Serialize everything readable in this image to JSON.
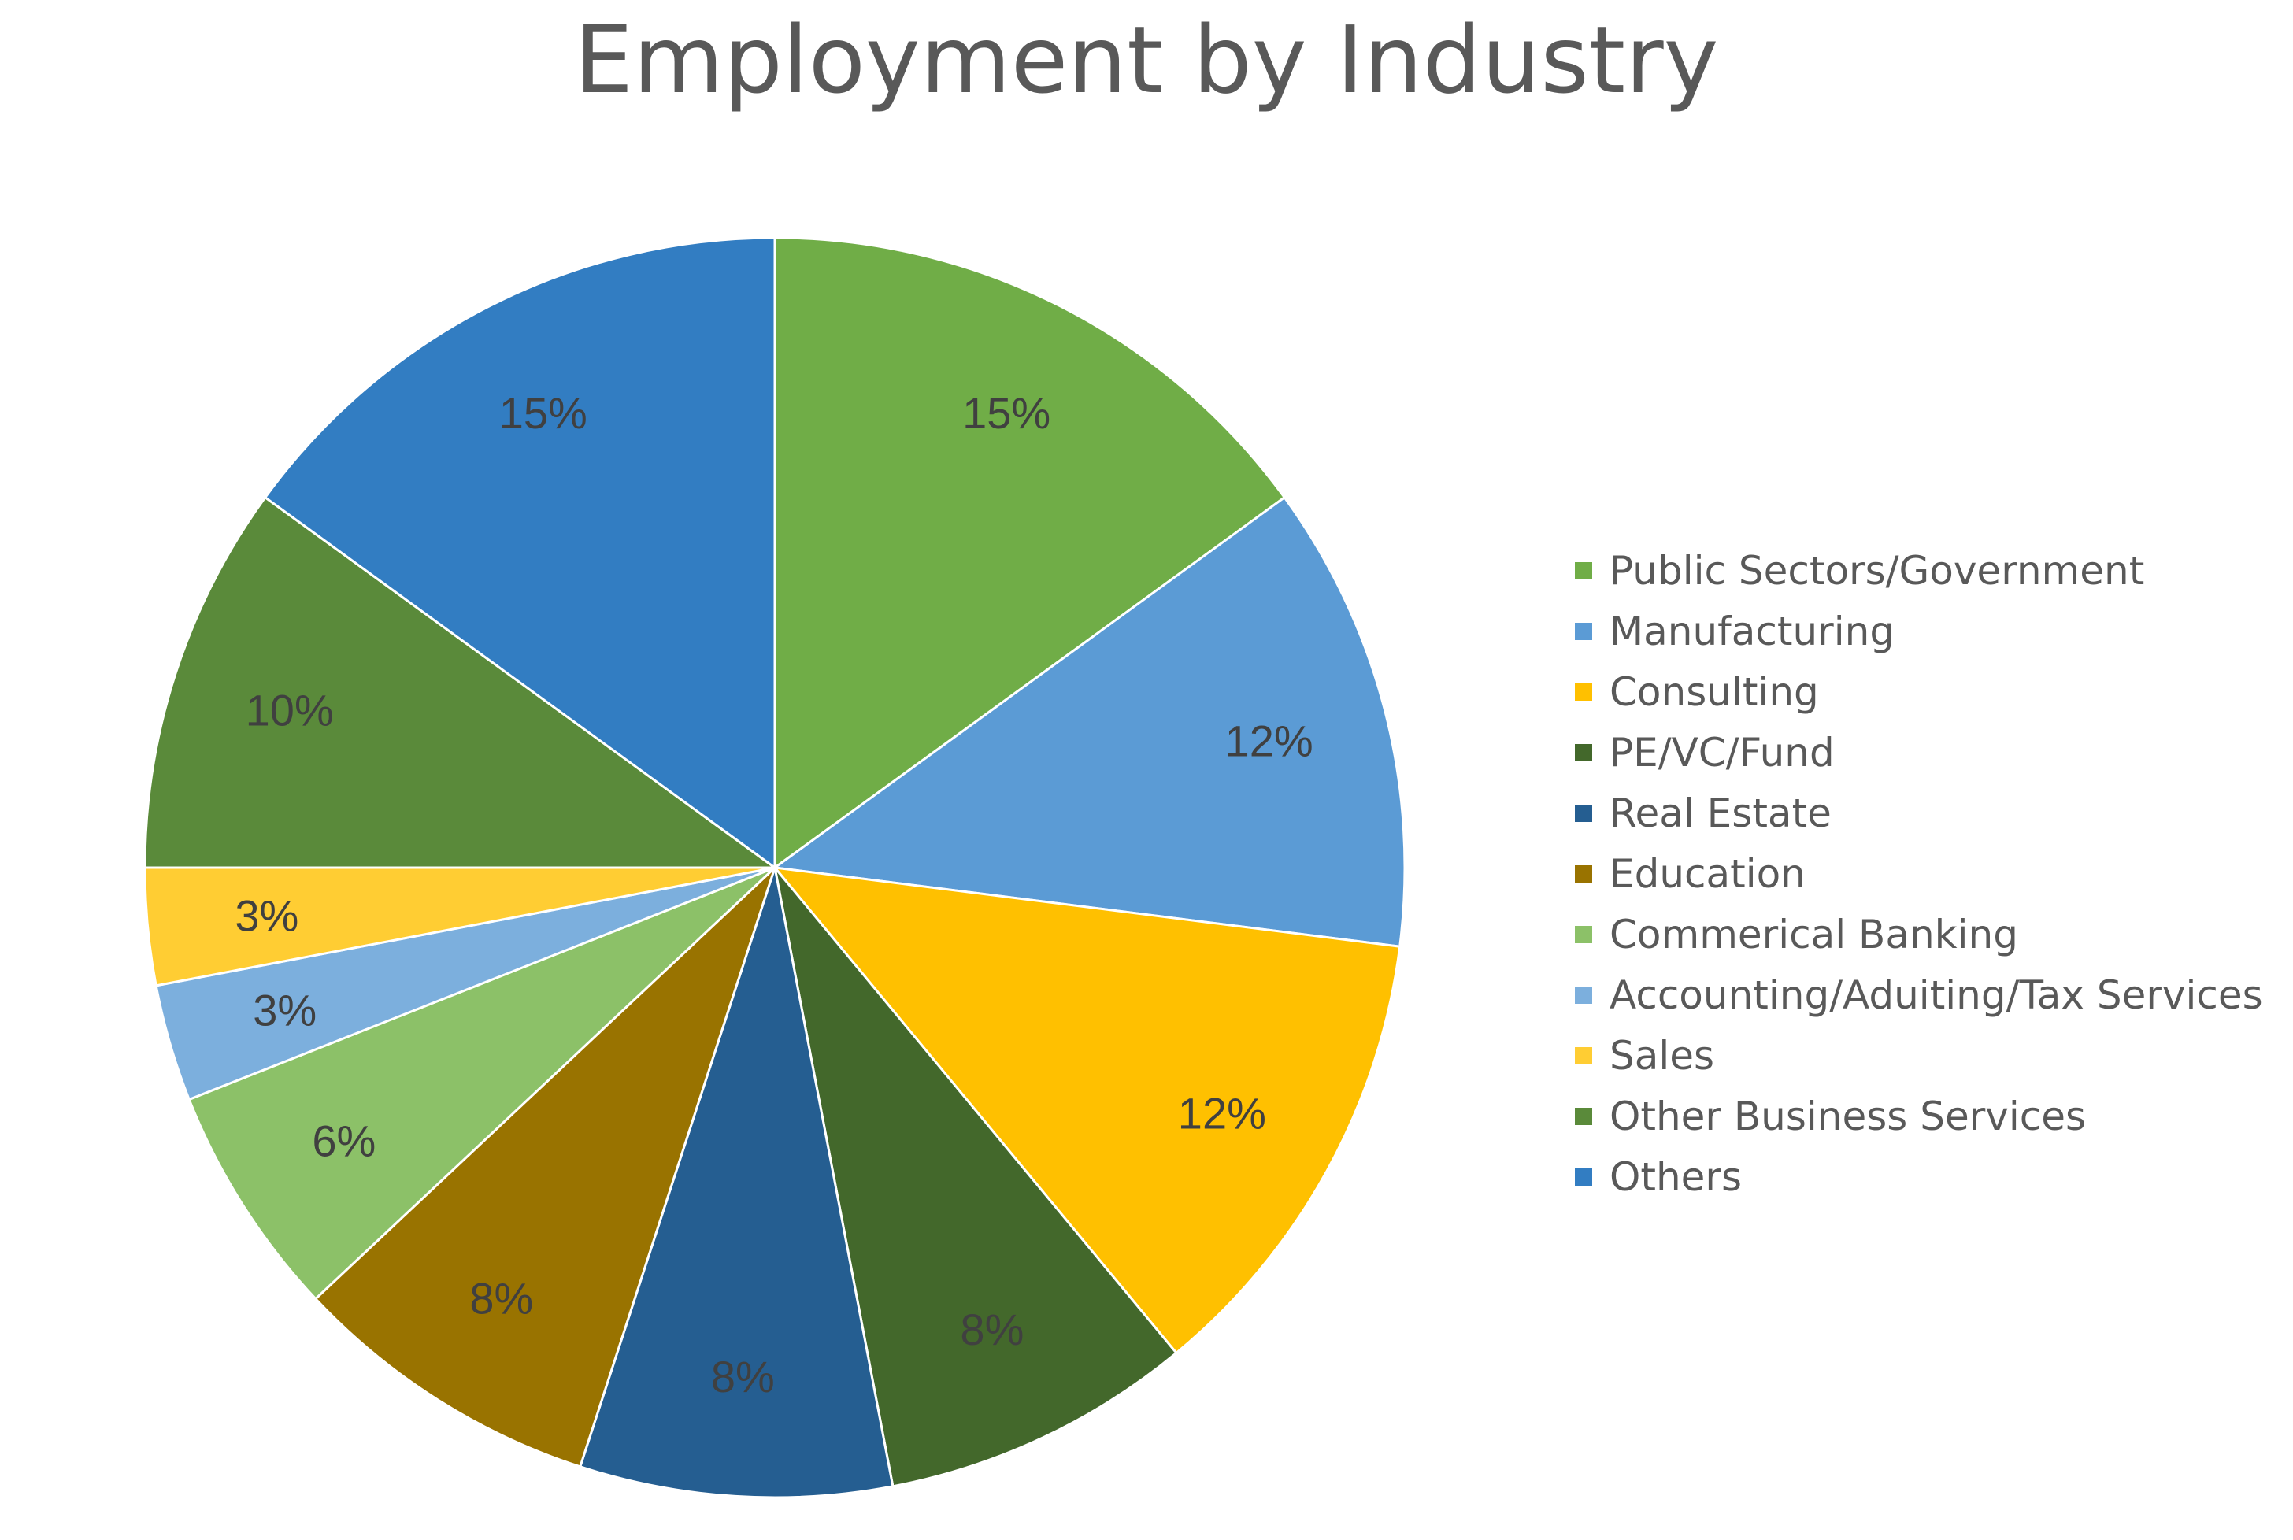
{
  "chart_data": {
    "type": "pie",
    "title": "Employment by Industry",
    "legend_position": "right",
    "slices": [
      {
        "name": "Public Sectors/Government",
        "value": 15,
        "label": "15%",
        "color": "#70AD47"
      },
      {
        "name": "Manufacturing",
        "value": 12,
        "label": "12%",
        "color": "#5B9BD5"
      },
      {
        "name": "Consulting",
        "value": 12,
        "label": "12%",
        "color": "#FFC000"
      },
      {
        "name": "PE/VC/Fund",
        "value": 8,
        "label": "8%",
        "color": "#43682B"
      },
      {
        "name": "Real Estate",
        "value": 8,
        "label": "8%",
        "color": "#255E91"
      },
      {
        "name": "Education",
        "value": 8,
        "label": "8%",
        "color": "#997300"
      },
      {
        "name": "Commerical Banking",
        "value": 6,
        "label": "6%",
        "color": "#8CC168"
      },
      {
        "name": "Accounting/Aduiting/Tax Services",
        "value": 3,
        "label": "3%",
        "color": "#7CAFDD"
      },
      {
        "name": "Sales",
        "value": 3,
        "label": "3%",
        "color": "#FFCD33"
      },
      {
        "name": "Other Business Services",
        "value": 10,
        "label": "10%",
        "color": "#5A8A3A"
      },
      {
        "name": "Others",
        "value": 15,
        "label": "15%",
        "color": "#327DC2"
      }
    ]
  }
}
